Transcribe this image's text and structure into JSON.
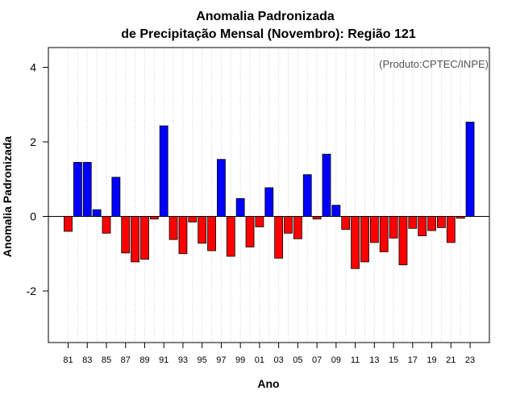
{
  "chart_data": {
    "type": "bar",
    "title": "Anomalia Padronizada",
    "subtitle": "de Precipitação Mensal (Novembro): Região 121",
    "xlabel": "Ano",
    "ylabel": "Anomalia Padronizada",
    "credit": "(Produto:CPTEC/INPE)",
    "ylim": [
      -3.4,
      4.5
    ],
    "yticks": [
      -2,
      0,
      2,
      4
    ],
    "grid": "vertical dotted",
    "positive_color": "#0000ff",
    "negative_color": "#ff0000",
    "categories": [
      "81",
      "82",
      "83",
      "84",
      "85",
      "86",
      "87",
      "88",
      "89",
      "90",
      "91",
      "92",
      "93",
      "94",
      "95",
      "96",
      "97",
      "98",
      "99",
      "00",
      "01",
      "02",
      "03",
      "04",
      "05",
      "06",
      "07",
      "08",
      "09",
      "10",
      "11",
      "12",
      "13",
      "14",
      "15",
      "16",
      "17",
      "18",
      "19",
      "20",
      "21",
      "22",
      "23"
    ],
    "tick_labels": [
      "81",
      "83",
      "85",
      "87",
      "89",
      "91",
      "93",
      "95",
      "97",
      "99",
      "01",
      "03",
      "05",
      "07",
      "09",
      "11",
      "13",
      "15",
      "17",
      "19",
      "21",
      "23"
    ],
    "values": [
      -0.4,
      1.45,
      1.45,
      0.18,
      -0.45,
      1.05,
      -0.98,
      -1.22,
      -1.15,
      -0.07,
      2.43,
      -0.62,
      -1.0,
      -0.15,
      -0.72,
      -0.92,
      1.53,
      -1.07,
      0.48,
      -0.82,
      -0.28,
      0.77,
      -1.12,
      -0.45,
      -0.6,
      1.12,
      -0.07,
      1.67,
      0.3,
      -0.35,
      -1.4,
      -1.22,
      -0.7,
      -0.95,
      -0.58,
      -1.3,
      -0.32,
      -0.52,
      -0.38,
      -0.3,
      -0.7,
      -0.05,
      2.53
    ]
  }
}
